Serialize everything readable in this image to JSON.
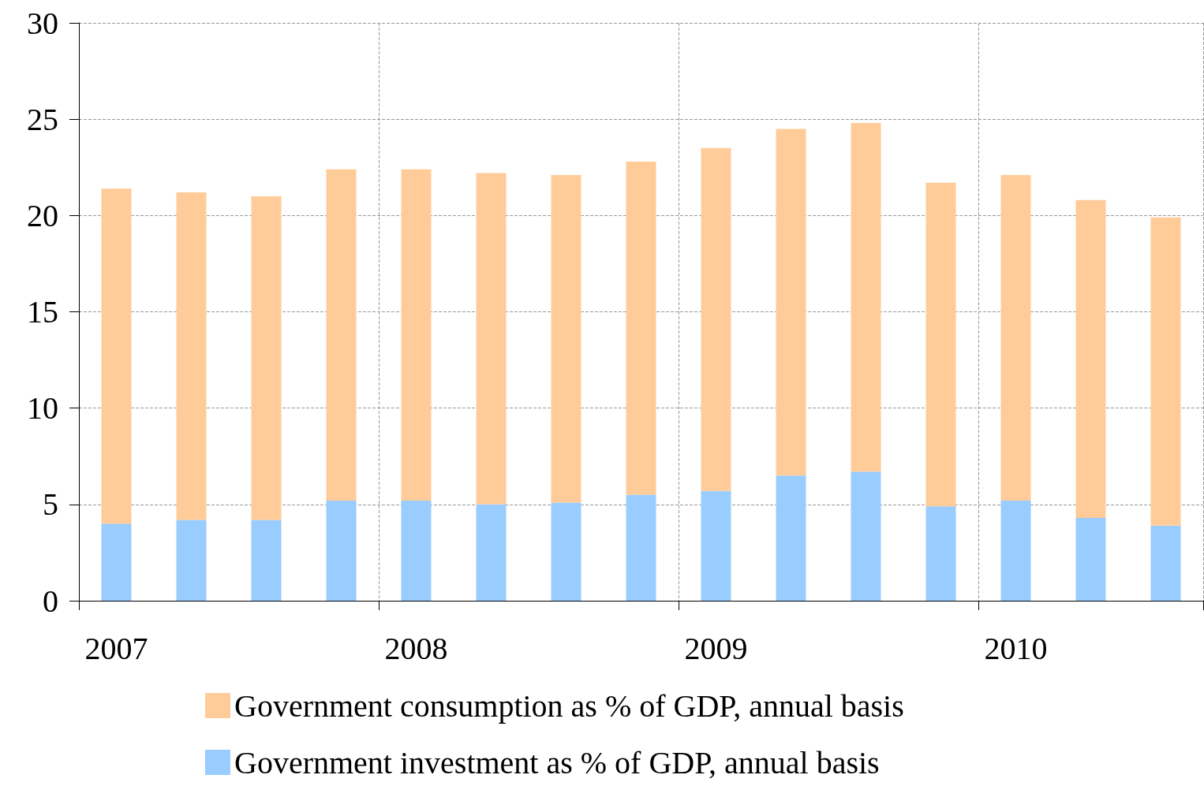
{
  "chart_data": {
    "type": "bar",
    "stacked": true,
    "categories": [
      "2007",
      null,
      null,
      null,
      "2008",
      null,
      null,
      null,
      "2009",
      null,
      null,
      null,
      "2010",
      null,
      null
    ],
    "series": [
      {
        "name": "Government investment as % of GDP, annual basis",
        "color": "#99ccff",
        "values": [
          4.0,
          4.2,
          4.2,
          5.2,
          5.2,
          5.0,
          5.1,
          5.5,
          5.7,
          6.5,
          6.7,
          4.9,
          5.2,
          4.3,
          3.9
        ]
      },
      {
        "name": "Government consumption as % of GDP, annual basis",
        "color": "#ffcc99",
        "values": [
          17.4,
          17.0,
          16.8,
          17.2,
          17.2,
          17.2,
          17.0,
          17.3,
          17.8,
          18.0,
          18.1,
          16.8,
          16.9,
          16.5,
          16.0
        ]
      }
    ],
    "ylim": [
      0,
      30
    ],
    "yticks": [
      0,
      5,
      10,
      15,
      20,
      25,
      30
    ],
    "grid": true,
    "legend": "bottom"
  }
}
